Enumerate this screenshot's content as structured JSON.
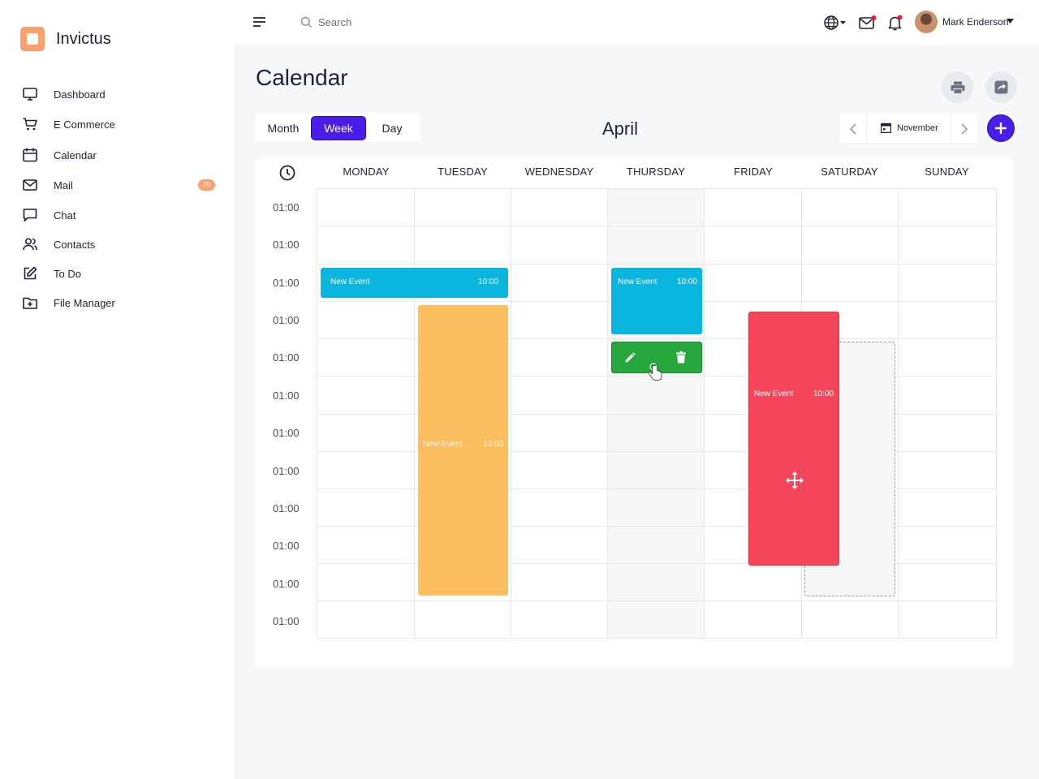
{
  "brand": {
    "name": "Invictus",
    "accent": "#4a1ee8",
    "logo_color": "#fba06c"
  },
  "sidebar": {
    "items": [
      {
        "label": "Dashboard",
        "icon": "monitor-icon"
      },
      {
        "label": "E Commerce",
        "icon": "cart-icon"
      },
      {
        "label": "Calendar",
        "icon": "calendar-icon"
      },
      {
        "label": "Mail",
        "icon": "mail-icon",
        "badge": "20"
      },
      {
        "label": "Chat",
        "icon": "chat-icon"
      },
      {
        "label": "Contacts",
        "icon": "contacts-icon"
      },
      {
        "label": "To Do",
        "icon": "edit-icon"
      },
      {
        "label": "File Manager",
        "icon": "folder-plus-icon"
      }
    ]
  },
  "topbar": {
    "search_placeholder": "Search",
    "user_name": "Mark Enderson"
  },
  "page": {
    "title": "Calendar"
  },
  "calendar": {
    "views": [
      "Month",
      "Week",
      "Day"
    ],
    "active_view": "Week",
    "current_month": "April",
    "picker_label": "November",
    "days": [
      "MONDAY",
      "TUESDAY",
      "WEDNESDAY",
      "THURSDAY",
      "FRIDAY",
      "SATURDAY",
      "SUNDAY"
    ],
    "times": [
      "01:00",
      "01:00",
      "01:00",
      "01:00",
      "01:00",
      "01:00",
      "01:00",
      "01:00",
      "01:00",
      "01:00",
      "01:00",
      "01:00"
    ],
    "events": [
      {
        "title": "New Event",
        "time": "10:00",
        "color": "#0ab5de",
        "day": "Monday-Tuesday"
      },
      {
        "title": "New Event",
        "time": "10:00",
        "color": "#fcbe5f",
        "day": "Tuesday"
      },
      {
        "title": "New Event",
        "time": "10:00",
        "color": "#0ab5de",
        "day": "Thursday"
      },
      {
        "title": "New Event",
        "time": "10:00",
        "color": "#f4455a",
        "day": "Friday"
      }
    ]
  }
}
